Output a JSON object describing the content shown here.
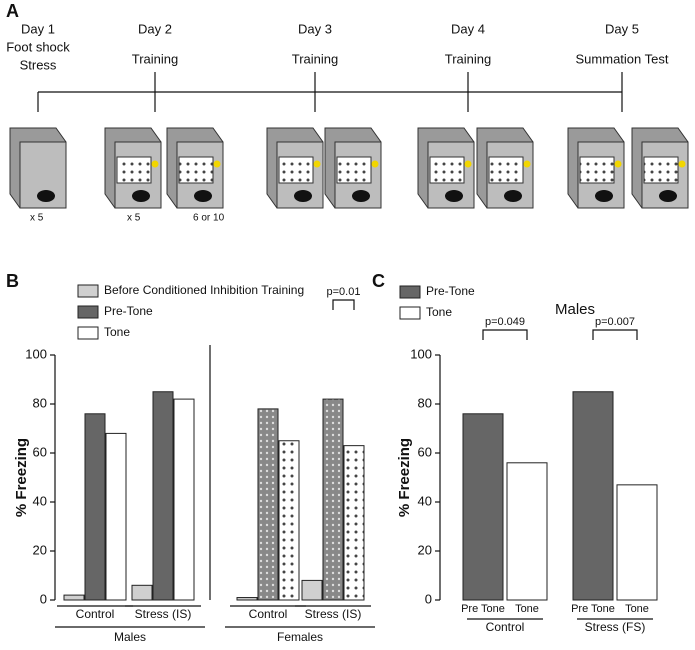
{
  "timeline": {
    "panel": "A",
    "days": [
      {
        "day": "Day 1",
        "lines": [
          "Foot shock",
          "Stress"
        ]
      },
      {
        "day": "Day 2",
        "lines": [
          "Training"
        ]
      },
      {
        "day": "Day 3",
        "lines": [
          "Training"
        ]
      },
      {
        "day": "Day 4",
        "lines": [
          "Training"
        ]
      },
      {
        "day": "Day 5",
        "lines": [
          "Summation Test"
        ]
      }
    ],
    "notes": [
      "x 5",
      "x 5",
      "6 or 10"
    ]
  },
  "chart_data": [
    {
      "type": "bar",
      "panel": "B",
      "ylabel": "% Freezing",
      "categories": [
        "Control",
        "Stress (IS)",
        "Control",
        "Stress (IS)"
      ],
      "groups": [
        "Males",
        "Females"
      ],
      "series": [
        {
          "name": "Before Conditioned Inhibition Training",
          "color": "#d0d0d0",
          "values": [
            2,
            6,
            1,
            8
          ]
        },
        {
          "name": "Pre-Tone",
          "color": "#666666",
          "values": [
            76,
            85,
            78,
            82
          ]
        },
        {
          "name": "Tone",
          "color": "#ffffff",
          "values": [
            68,
            82,
            65,
            63
          ]
        }
      ],
      "ylim": [
        0,
        100
      ],
      "yticks": [
        0,
        20,
        40,
        60,
        80,
        100
      ],
      "annotations": [
        "p=0.01"
      ]
    },
    {
      "type": "bar",
      "panel": "C",
      "title": "Males",
      "ylabel": "% Freezing",
      "categories": [
        "Control",
        "Stress (FS)"
      ],
      "bar_labels": [
        "Pre Tone",
        "Tone"
      ],
      "series": [
        {
          "name": "Pre-Tone",
          "color": "#666666",
          "values": [
            76,
            85
          ]
        },
        {
          "name": "Tone",
          "color": "#ffffff",
          "values": [
            56,
            47
          ]
        }
      ],
      "ylim": [
        0,
        100
      ],
      "yticks": [
        0,
        20,
        40,
        60,
        80,
        100
      ],
      "annotations": [
        "p=0.049",
        "p=0.007"
      ]
    }
  ]
}
